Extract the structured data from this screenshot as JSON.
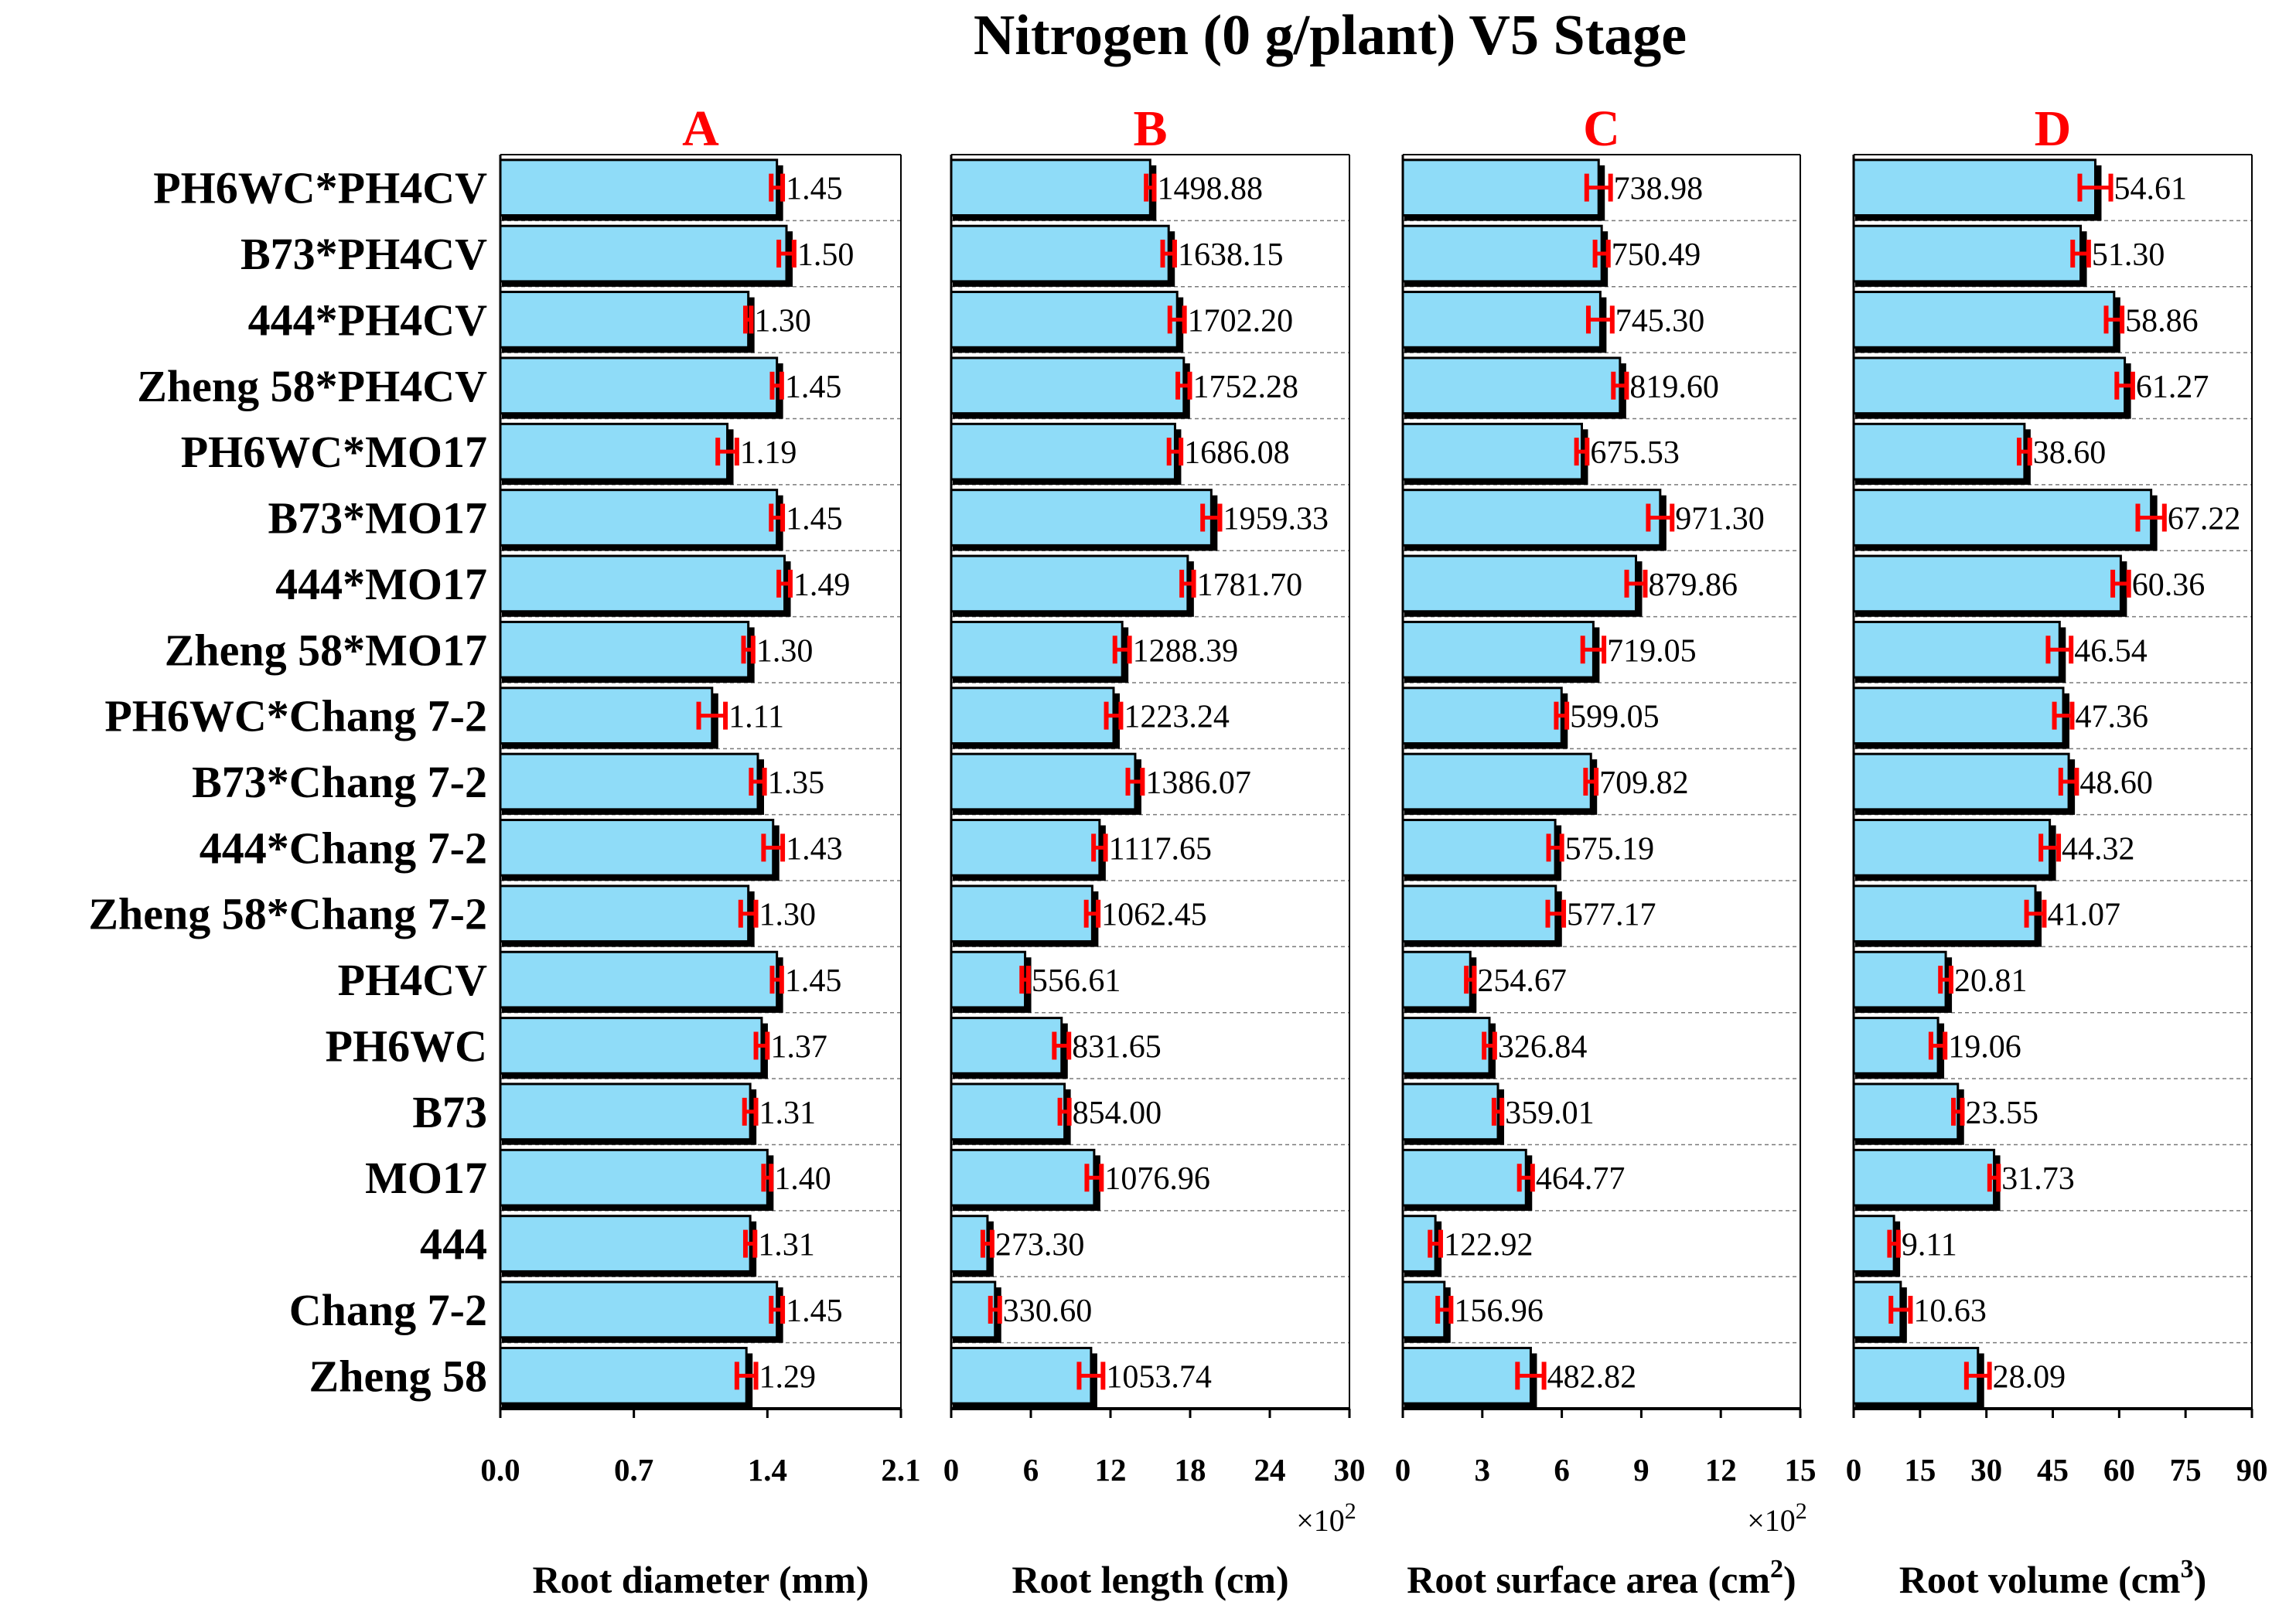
{
  "chart_data": {
    "type": "bar",
    "orientation": "horizontal",
    "title": "Nitrogen (0 g/plant) V5 Stage",
    "categories": [
      "PH6WC*PH4CV",
      "B73*PH4CV",
      "444*PH4CV",
      "Zheng 58*PH4CV",
      "PH6WC*MO17",
      "B73*MO17",
      "444*MO17",
      "Zheng 58*MO17",
      "PH6WC*Chang 7-2",
      "B73*Chang 7-2",
      "444*Chang 7-2",
      "Zheng 58*Chang 7-2",
      "PH4CV",
      "PH6WC",
      "B73",
      "MO17",
      "444",
      "Chang 7-2",
      "Zheng 58"
    ],
    "bar_color": "#8fdcf8",
    "error_color": "#ff0000",
    "title_color": "#000000",
    "panels": [
      {
        "letter": "A",
        "xlabel": "Root diameter (mm)",
        "xlabel_sup": "",
        "xlabel_end": "",
        "xlim": [
          0,
          2.1
        ],
        "ticks": [
          "0.0",
          "0.7",
          "1.4",
          "2.1"
        ],
        "multiplier": "",
        "multiplier_exp": "",
        "values": [
          1.45,
          1.5,
          1.3,
          1.45,
          1.19,
          1.45,
          1.49,
          1.3,
          1.11,
          1.35,
          1.43,
          1.3,
          1.45,
          1.37,
          1.31,
          1.4,
          1.31,
          1.45,
          1.29
        ],
        "errors": [
          0.03,
          0.04,
          0.015,
          0.025,
          0.05,
          0.03,
          0.03,
          0.025,
          0.07,
          0.035,
          0.05,
          0.04,
          0.025,
          0.03,
          0.03,
          0.02,
          0.025,
          0.03,
          0.05
        ],
        "labels": [
          "1.45",
          "1.50",
          "1.30",
          "1.45",
          "1.19",
          "1.45",
          "1.49",
          "1.30",
          "1.11",
          "1.35",
          "1.43",
          "1.30",
          "1.45",
          "1.37",
          "1.31",
          "1.40",
          "1.31",
          "1.45",
          "1.29"
        ]
      },
      {
        "letter": "B",
        "xlabel": "Root length (cm)",
        "xlabel_sup": "",
        "xlabel_end": "",
        "xlim": [
          0,
          30
        ],
        "ticks": [
          "0",
          "6",
          "12",
          "18",
          "24",
          "30"
        ],
        "multiplier": "×10",
        "multiplier_exp": "2",
        "values": [
          14.9888,
          16.3815,
          17.022,
          17.5228,
          16.8608,
          19.5933,
          17.817,
          12.8839,
          12.2324,
          13.8607,
          11.1765,
          10.6245,
          5.5661,
          8.3165,
          8.54,
          10.7696,
          2.733,
          3.306,
          10.5374
        ],
        "errors": [
          0.3,
          0.45,
          0.55,
          0.45,
          0.45,
          0.65,
          0.45,
          0.55,
          0.55,
          0.55,
          0.45,
          0.45,
          0.25,
          0.55,
          0.35,
          0.55,
          0.35,
          0.35,
          0.9
        ],
        "labels": [
          "1498.88",
          "1638.15",
          "1702.20",
          "1752.28",
          "1686.08",
          "1959.33",
          "1781.70",
          "1288.39",
          "1223.24",
          "1386.07",
          "1117.65",
          "1062.45",
          "556.61",
          "831.65",
          "854.00",
          "1076.96",
          "273.30",
          "330.60",
          "1053.74"
        ]
      },
      {
        "letter": "C",
        "xlabel": "Root surface area (cm",
        "xlabel_sup": "2",
        "xlabel_end": ")",
        "xlim": [
          0,
          15
        ],
        "ticks": [
          "0",
          "3",
          "6",
          "9",
          "12",
          "15"
        ],
        "multiplier": "×10",
        "multiplier_exp": "2",
        "values": [
          7.3898,
          7.5049,
          7.453,
          8.196,
          6.7553,
          9.713,
          8.7986,
          7.1905,
          5.9905,
          7.0982,
          5.7519,
          5.7717,
          2.5467,
          3.2684,
          3.5901,
          4.6477,
          1.2292,
          1.5696,
          4.8282
        ],
        "errors": [
          0.45,
          0.25,
          0.45,
          0.25,
          0.2,
          0.45,
          0.35,
          0.4,
          0.2,
          0.2,
          0.25,
          0.3,
          0.15,
          0.2,
          0.15,
          0.25,
          0.2,
          0.25,
          0.5
        ],
        "labels": [
          "738.98",
          "750.49",
          "745.30",
          "819.60",
          "675.53",
          "971.30",
          "879.86",
          "719.05",
          "599.05",
          "709.82",
          "575.19",
          "577.17",
          "254.67",
          "326.84",
          "359.01",
          "464.77",
          "122.92",
          "156.96",
          "482.82"
        ]
      },
      {
        "letter": "D",
        "xlabel": "Root volume (cm",
        "xlabel_sup": "3",
        "xlabel_end": ")",
        "xlim": [
          0,
          90
        ],
        "ticks": [
          "0",
          "15",
          "30",
          "45",
          "60",
          "75",
          "90"
        ],
        "multiplier": "",
        "multiplier_exp": "",
        "values": [
          54.61,
          51.3,
          58.86,
          61.27,
          38.6,
          67.22,
          60.36,
          46.54,
          47.36,
          48.6,
          44.32,
          41.07,
          20.81,
          19.06,
          23.55,
          31.73,
          9.11,
          10.63,
          28.09
        ],
        "errors": [
          3.5,
          1.8,
          1.8,
          1.8,
          1.2,
          3.0,
          1.8,
          2.6,
          2.0,
          1.8,
          2.0,
          2.0,
          1.2,
          1.6,
          1.0,
          1.0,
          1.0,
          2.2,
          2.6
        ],
        "labels": [
          "54.61",
          "51.30",
          "58.86",
          "61.27",
          "38.60",
          "67.22",
          "60.36",
          "46.54",
          "47.36",
          "48.60",
          "44.32",
          "41.07",
          "20.81",
          "19.06",
          "23.55",
          "31.73",
          "9.11",
          "10.63",
          "28.09"
        ]
      }
    ]
  }
}
